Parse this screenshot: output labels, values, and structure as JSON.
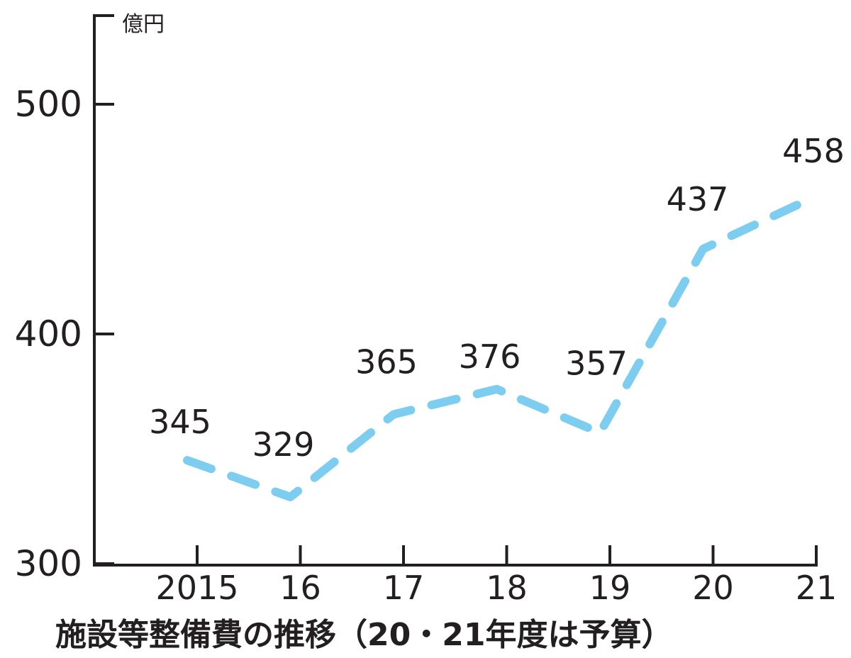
{
  "chart_data": {
    "type": "line",
    "caption": "施設等整備費の推移（20・21年度は予算）",
    "y_unit": "億円",
    "categories": [
      "2015",
      "16",
      "17",
      "18",
      "19",
      "20",
      "21"
    ],
    "values": [
      345,
      329,
      365,
      376,
      357,
      437,
      458
    ],
    "data_labels": [
      "345",
      "329",
      "365",
      "376",
      "357",
      "437",
      "458"
    ],
    "ylim": [
      300,
      540
    ],
    "yticks": [
      300,
      400,
      500
    ],
    "ytick_labels": [
      "300",
      "400",
      "500"
    ],
    "grid": false,
    "legend": "none",
    "line_style": "dashed",
    "line_color": "#7dcdf0",
    "axis_color": "#231f20"
  }
}
